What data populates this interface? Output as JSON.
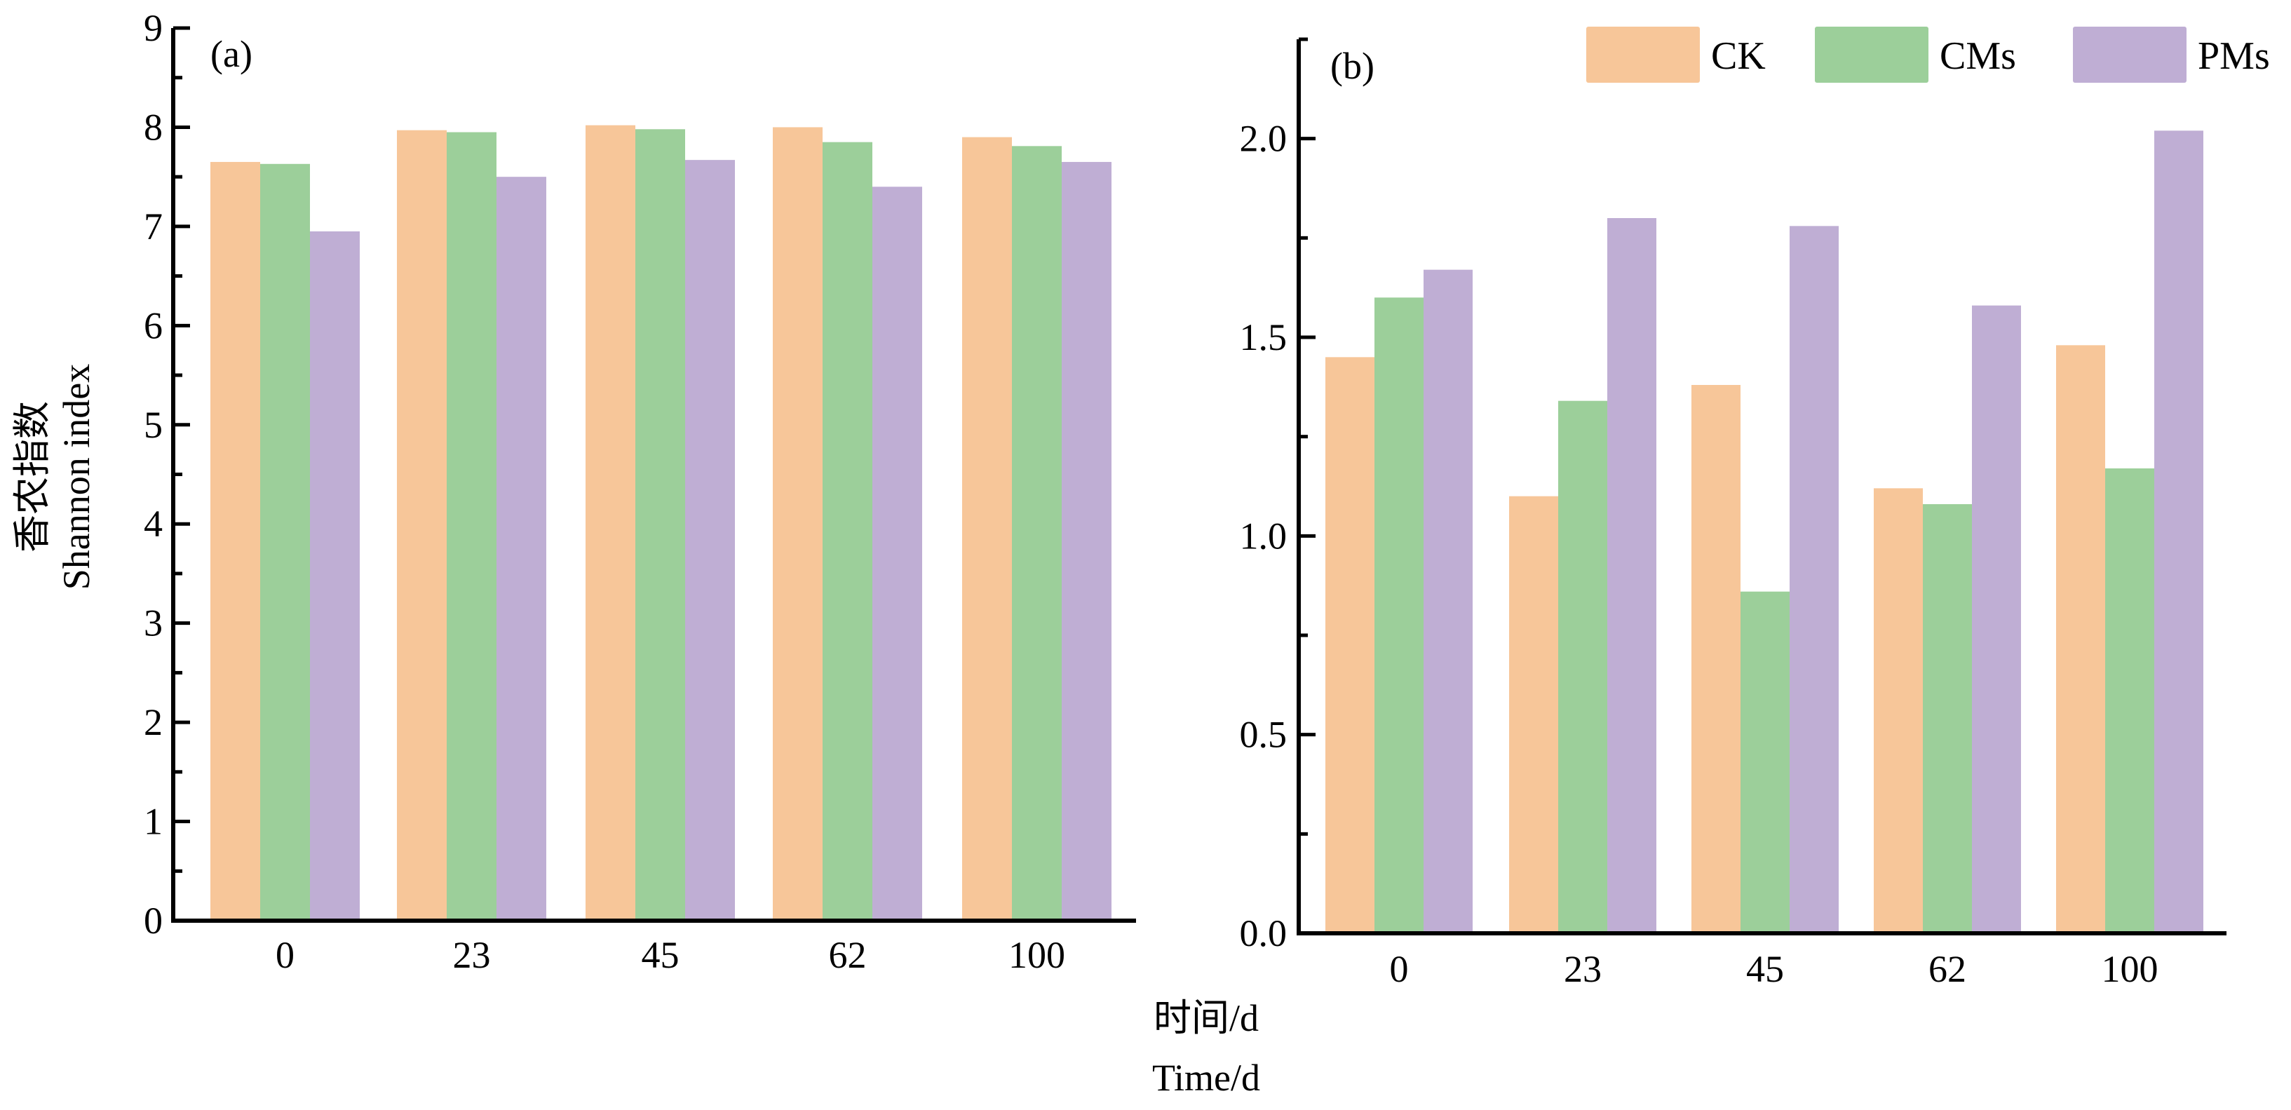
{
  "shared": {
    "categories": [
      "0",
      "23",
      "45",
      "62",
      "100"
    ],
    "xlabel_cn": "时间/d",
    "xlabel_en": "Time/d",
    "series_names": [
      "CK",
      "CMs",
      "PMs"
    ],
    "colors": [
      "#f7c699",
      "#9ccf9a",
      "#bfaed4"
    ]
  },
  "chart_data": [
    {
      "type": "bar",
      "panel": "(a)",
      "categories": [
        "0",
        "23",
        "45",
        "62",
        "100"
      ],
      "ylabel_cn": "香农指数",
      "ylabel_en": "Shannon index",
      "ylim": [
        0,
        9
      ],
      "yticks": [
        "0",
        "1",
        "2",
        "3",
        "4",
        "5",
        "6",
        "7",
        "8",
        "9"
      ],
      "series": [
        {
          "name": "CK",
          "values": [
            7.65,
            7.97,
            8.02,
            8.0,
            7.9
          ]
        },
        {
          "name": "CMs",
          "values": [
            7.63,
            7.95,
            7.98,
            7.85,
            7.81
          ]
        },
        {
          "name": "PMs",
          "values": [
            6.95,
            7.5,
            7.67,
            7.4,
            7.65
          ]
        }
      ]
    },
    {
      "type": "bar",
      "panel": "(b)",
      "categories": [
        "0",
        "23",
        "45",
        "62",
        "100"
      ],
      "ylim": [
        0,
        2.25
      ],
      "yticks": [
        "0.0",
        "0.5",
        "1.0",
        "1.5",
        "2.0"
      ],
      "series": [
        {
          "name": "CK",
          "values": [
            1.45,
            1.1,
            1.38,
            1.12,
            1.48
          ]
        },
        {
          "name": "CMs",
          "values": [
            1.6,
            1.34,
            0.86,
            1.08,
            1.17
          ]
        },
        {
          "name": "PMs",
          "values": [
            1.67,
            1.8,
            1.78,
            1.58,
            2.02
          ]
        }
      ]
    }
  ]
}
